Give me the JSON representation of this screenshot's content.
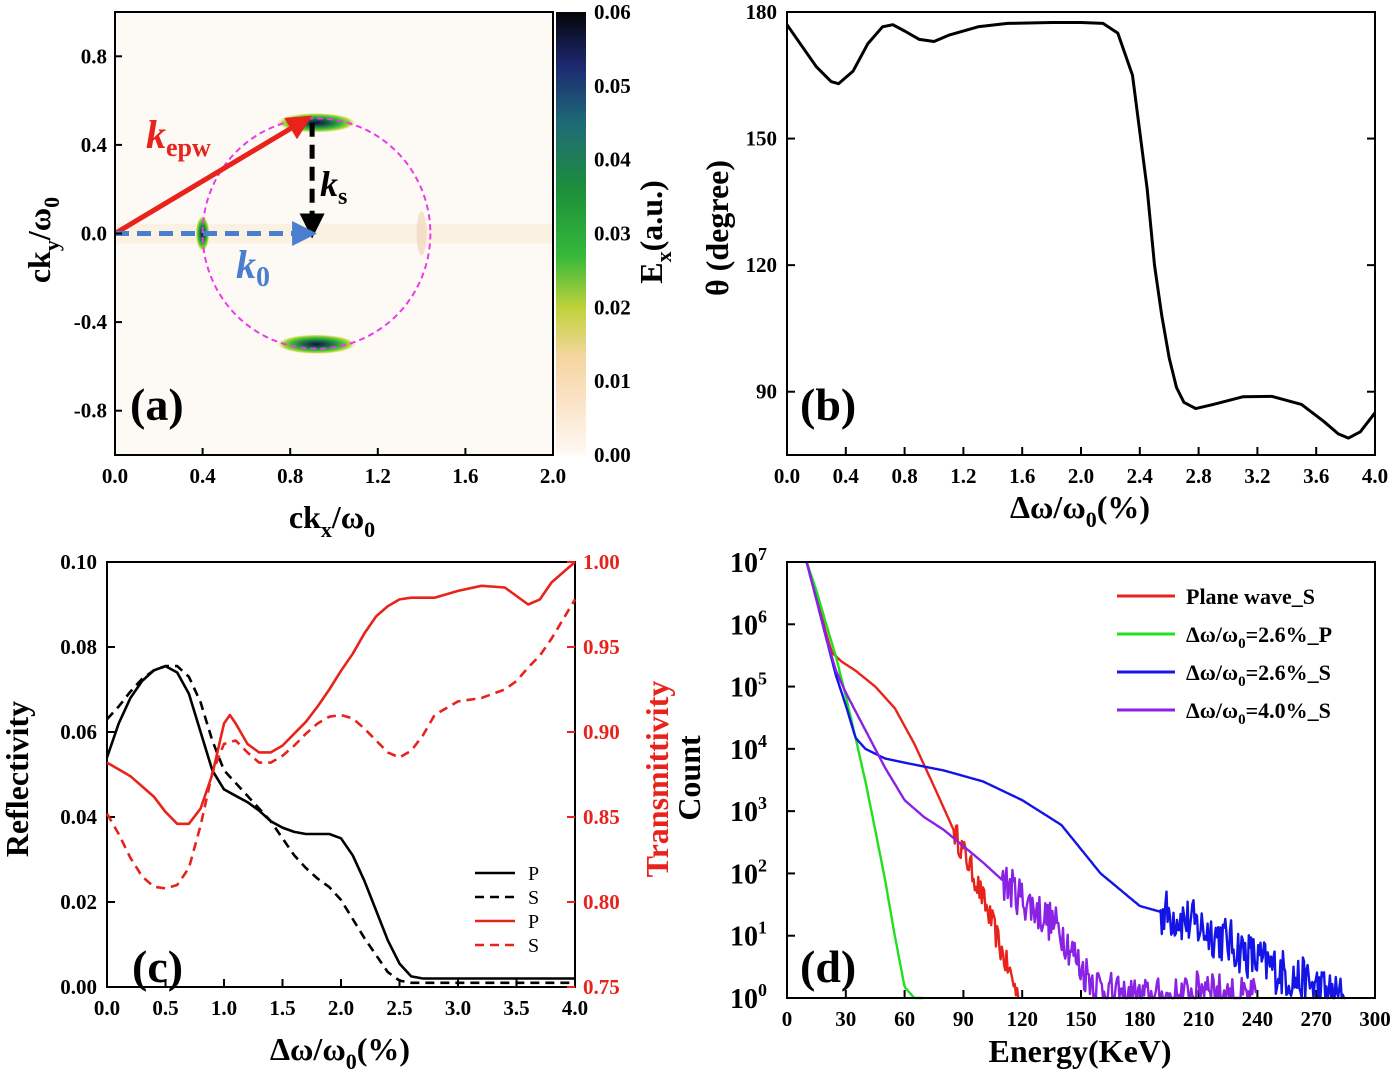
{
  "colors": {
    "red": "#e8231c",
    "blue": "#1414e6",
    "green": "#22e01e",
    "purple": "#8a22e6",
    "magenta": "#e83ce8",
    "steel": "#4a7fd0"
  },
  "chart_data": [
    {
      "panel": "a",
      "type": "heatmap",
      "panel_label": "(a)",
      "xlabel_main": "ck",
      "xlabel_sub": "x",
      "xlabel_tail": "/ω",
      "xlabel_tail_sub": "0",
      "ylabel_main": "ck",
      "ylabel_sub": "y",
      "ylabel_tail": "/ω",
      "ylabel_tail_sub": "0",
      "xlim": [
        0.0,
        2.0
      ],
      "ylim": [
        -1.0,
        1.0
      ],
      "xticks": [
        "0.0",
        "0.4",
        "0.8",
        "1.2",
        "1.6",
        "2.0"
      ],
      "yticks": [
        "-0.8",
        "-0.4",
        "0.0",
        "0.4",
        "0.8"
      ],
      "colorbar_label_main": "E",
      "colorbar_label_sub": "x",
      "colorbar_label_tail": "(a.u.)",
      "colorbar_range": [
        0.0,
        0.06
      ],
      "colorbar_ticks": [
        "0.00",
        "0.01",
        "0.02",
        "0.03",
        "0.04",
        "0.05",
        "0.06"
      ],
      "circle": {
        "center": [
          0.92,
          0.0
        ],
        "radius": 0.52
      },
      "hotspots": [
        {
          "x": 0.92,
          "y": 0.5,
          "intensity": 0.06
        },
        {
          "x": 0.92,
          "y": -0.5,
          "intensity": 0.06
        },
        {
          "x": 0.4,
          "y": 0.0,
          "intensity": 0.045
        }
      ],
      "vectors": [
        {
          "label_main": "k",
          "label_sub": "epw",
          "from": [
            0.0,
            0.0
          ],
          "to": [
            0.88,
            0.52
          ],
          "color": "red",
          "style": "solid"
        },
        {
          "label_main": "k",
          "label_sub": "s",
          "from": [
            0.9,
            0.5
          ],
          "to": [
            0.9,
            0.0
          ],
          "color": "black",
          "style": "dashed"
        },
        {
          "label_main": "k",
          "label_sub": "0",
          "from": [
            0.0,
            0.0
          ],
          "to": [
            0.9,
            0.0
          ],
          "color": "steel",
          "style": "dashed"
        }
      ]
    },
    {
      "panel": "b",
      "type": "line",
      "panel_label": "(b)",
      "xlabel_main": "Δω/ω",
      "xlabel_sub": "0",
      "xlabel_tail": "(%)",
      "ylabel": "θ (degree)",
      "xlim": [
        0.0,
        4.0
      ],
      "ylim": [
        75,
        180
      ],
      "xticks": [
        "0.0",
        "0.4",
        "0.8",
        "1.2",
        "1.6",
        "2.0",
        "2.4",
        "2.8",
        "3.2",
        "3.6",
        "4.0"
      ],
      "yticks": [
        "90",
        "120",
        "150",
        "180"
      ],
      "series": [
        {
          "color": "black",
          "x": [
            0.0,
            0.1,
            0.2,
            0.3,
            0.35,
            0.45,
            0.55,
            0.65,
            0.72,
            0.8,
            0.9,
            1.0,
            1.1,
            1.3,
            1.5,
            1.8,
            2.0,
            2.15,
            2.25,
            2.35,
            2.45,
            2.5,
            2.55,
            2.6,
            2.65,
            2.7,
            2.78,
            2.9,
            3.1,
            3.3,
            3.5,
            3.65,
            3.75,
            3.82,
            3.9,
            4.0
          ],
          "y": [
            177,
            172,
            167,
            163.5,
            163,
            166,
            172.5,
            176.5,
            177,
            175.5,
            173.5,
            173,
            174.5,
            176.5,
            177.3,
            177.5,
            177.5,
            177.3,
            175,
            165,
            138,
            120,
            108,
            98,
            91,
            87.5,
            86,
            87,
            88.8,
            88.9,
            87,
            83,
            80,
            79,
            80.5,
            85
          ]
        }
      ]
    },
    {
      "panel": "c",
      "type": "line",
      "panel_label": "(c)",
      "xlabel_main": "Δω/ω",
      "xlabel_sub": "0",
      "xlabel_tail": "(%)",
      "ylabel": "Reflectivity",
      "ylabel_right": "Transmittivity",
      "xlim": [
        0.0,
        4.0
      ],
      "ylim": [
        0.0,
        0.1
      ],
      "ylim_right": [
        0.75,
        1.0
      ],
      "xticks": [
        "0.0",
        "0.5",
        "1.0",
        "1.5",
        "2.0",
        "2.5",
        "3.0",
        "3.5",
        "4.0"
      ],
      "yticks": [
        "0.00",
        "0.02",
        "0.04",
        "0.06",
        "0.08",
        "0.10"
      ],
      "yticks_right": [
        "0.75",
        "0.80",
        "0.85",
        "0.90",
        "0.95",
        "1.00"
      ],
      "series": [
        {
          "name": "P",
          "axis": "left",
          "color": "black",
          "dash": false,
          "x": [
            0.0,
            0.1,
            0.2,
            0.3,
            0.4,
            0.5,
            0.6,
            0.7,
            0.8,
            0.9,
            1.0,
            1.1,
            1.2,
            1.3,
            1.4,
            1.5,
            1.6,
            1.7,
            1.8,
            1.9,
            2.0,
            2.1,
            2.2,
            2.3,
            2.4,
            2.5,
            2.6,
            2.7,
            2.8,
            2.9,
            3.0,
            3.5,
            4.0
          ],
          "y": [
            0.054,
            0.062,
            0.068,
            0.072,
            0.0745,
            0.0755,
            0.074,
            0.069,
            0.06,
            0.051,
            0.0465,
            0.045,
            0.0435,
            0.0415,
            0.039,
            0.0375,
            0.0365,
            0.036,
            0.036,
            0.036,
            0.035,
            0.031,
            0.025,
            0.018,
            0.011,
            0.0055,
            0.0025,
            0.002,
            0.002,
            0.002,
            0.002,
            0.002,
            0.002
          ]
        },
        {
          "name": "S",
          "axis": "left",
          "color": "black",
          "dash": true,
          "x": [
            0.0,
            0.1,
            0.2,
            0.3,
            0.4,
            0.5,
            0.6,
            0.7,
            0.8,
            0.9,
            1.0,
            1.1,
            1.2,
            1.3,
            1.4,
            1.5,
            1.6,
            1.7,
            1.8,
            1.9,
            2.0,
            2.1,
            2.2,
            2.3,
            2.4,
            2.5,
            2.6,
            2.7,
            3.0,
            3.5,
            4.0
          ],
          "y": [
            0.063,
            0.066,
            0.0695,
            0.0725,
            0.0745,
            0.0755,
            0.0755,
            0.073,
            0.067,
            0.058,
            0.051,
            0.048,
            0.045,
            0.042,
            0.039,
            0.035,
            0.031,
            0.028,
            0.0255,
            0.0235,
            0.0205,
            0.016,
            0.0115,
            0.0075,
            0.0035,
            0.0015,
            0.001,
            0.001,
            0.001,
            0.001,
            0.001
          ]
        },
        {
          "name": "P",
          "axis": "right",
          "color": "red",
          "dash": false,
          "x": [
            0.0,
            0.2,
            0.4,
            0.5,
            0.6,
            0.7,
            0.8,
            0.9,
            1.0,
            1.05,
            1.1,
            1.2,
            1.3,
            1.4,
            1.5,
            1.6,
            1.7,
            1.8,
            1.9,
            2.0,
            2.1,
            2.2,
            2.3,
            2.4,
            2.5,
            2.6,
            2.7,
            2.8,
            3.0,
            3.2,
            3.4,
            3.5,
            3.6,
            3.7,
            3.8,
            4.0
          ],
          "y": [
            0.882,
            0.874,
            0.862,
            0.853,
            0.846,
            0.846,
            0.855,
            0.875,
            0.905,
            0.91,
            0.905,
            0.893,
            0.888,
            0.888,
            0.892,
            0.899,
            0.906,
            0.915,
            0.925,
            0.936,
            0.946,
            0.958,
            0.968,
            0.974,
            0.978,
            0.979,
            0.979,
            0.979,
            0.983,
            0.986,
            0.985,
            0.98,
            0.975,
            0.978,
            0.988,
            1.0
          ]
        },
        {
          "name": "S",
          "axis": "right",
          "color": "red",
          "dash": true,
          "x": [
            0.0,
            0.1,
            0.2,
            0.3,
            0.4,
            0.5,
            0.6,
            0.7,
            0.8,
            0.9,
            1.0,
            1.1,
            1.2,
            1.3,
            1.4,
            1.5,
            1.6,
            1.7,
            1.8,
            1.9,
            2.0,
            2.1,
            2.2,
            2.3,
            2.4,
            2.5,
            2.6,
            2.7,
            2.8,
            3.0,
            3.2,
            3.4,
            3.5,
            3.6,
            3.7,
            3.8,
            4.0
          ],
          "y": [
            0.852,
            0.84,
            0.826,
            0.815,
            0.809,
            0.808,
            0.81,
            0.82,
            0.845,
            0.876,
            0.893,
            0.895,
            0.888,
            0.882,
            0.882,
            0.886,
            0.892,
            0.899,
            0.905,
            0.909,
            0.91,
            0.908,
            0.902,
            0.895,
            0.888,
            0.885,
            0.889,
            0.898,
            0.91,
            0.918,
            0.92,
            0.925,
            0.93,
            0.938,
            0.945,
            0.955,
            0.978
          ]
        }
      ]
    },
    {
      "panel": "d",
      "type": "line",
      "panel_label": "(d)",
      "xlabel": "Energy(KeV)",
      "ylabel": "Count",
      "y_scale": "log",
      "xlim": [
        0,
        300
      ],
      "ylim": [
        1,
        10000000
      ],
      "xticks": [
        "0",
        "30",
        "60",
        "90",
        "120",
        "150",
        "180",
        "210",
        "240",
        "270",
        "300"
      ],
      "yticks_exp": [
        "0",
        "1",
        "2",
        "3",
        "4",
        "5",
        "6",
        "7"
      ],
      "ytick_base": "10",
      "legend_position": "top-right",
      "series": [
        {
          "name": "Plane wave_S",
          "color": "red",
          "noise": 0.1,
          "noise_from": 85,
          "x": [
            10,
            15,
            20,
            23,
            28,
            35,
            45,
            55,
            65,
            75,
            85,
            95,
            105,
            110,
            115,
            118
          ],
          "y": [
            10000000.0,
            3000000.0,
            700000.0,
            350000.0,
            250000.0,
            180000.0,
            100000.0,
            45000.0,
            12000.0,
            2500.0,
            500.0,
            100.0,
            15.0,
            5,
            2,
            1
          ]
        },
        {
          "name": "Δω/ω0=2.6%_P",
          "name_parts": [
            "Δω/ω",
            "0",
            "=2.6%_P"
          ],
          "color": "green",
          "noise": 0.0,
          "noise_from": 999,
          "x": [
            10,
            15,
            20,
            25,
            30,
            35,
            40,
            45,
            50,
            55,
            60,
            65,
            70
          ],
          "y": [
            10000000.0,
            3500000.0,
            1000000.0,
            300000.0,
            70000.0,
            15000.0,
            3000.0,
            500.0,
            80.0,
            10.0,
            1.5,
            1,
            1
          ]
        },
        {
          "name": "Δω/ω0=2.6%_S",
          "name_parts": [
            "Δω/ω",
            "0",
            "=2.6%_S"
          ],
          "color": "blue",
          "noise": 0.18,
          "noise_from": 190,
          "x": [
            10,
            15,
            20,
            25,
            30,
            35,
            40,
            50,
            60,
            80,
            100,
            120,
            140,
            160,
            180,
            200,
            220,
            240,
            260,
            270,
            280,
            285
          ],
          "y": [
            10000000.0,
            2500000.0,
            600000.0,
            150000.0,
            50000.0,
            15000.0,
            10000.0,
            7000.0,
            6000.0,
            4500.0,
            3000.0,
            1500.0,
            600.0,
            100.0,
            30.0,
            20.0,
            10.0,
            4,
            2,
            1.5,
            1,
            1
          ]
        },
        {
          "name": "Δω/ω0=4.0%_S",
          "name_parts": [
            "Δω/ω",
            "0",
            "=4.0%_S"
          ],
          "color": "purple",
          "noise": 0.15,
          "noise_from": 110,
          "x": [
            10,
            15,
            20,
            25,
            30,
            40,
            50,
            60,
            70,
            80,
            100,
            120,
            140,
            150,
            160,
            170,
            180,
            190,
            200,
            210,
            215,
            220,
            230,
            240
          ],
          "y": [
            10000000.0,
            2500000.0,
            600000.0,
            180000.0,
            80000.0,
            20000.0,
            5000.0,
            1500.0,
            800.0,
            500.0,
            150.0,
            40.0,
            12.0,
            3,
            1.5,
            1,
            1,
            1,
            1,
            1.3,
            2,
            1.2,
            1,
            1
          ]
        }
      ]
    }
  ]
}
